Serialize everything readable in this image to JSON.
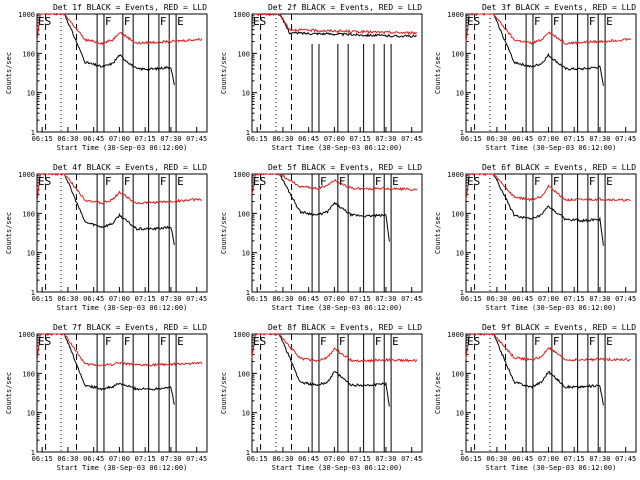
{
  "chart_data": [
    {
      "type": "line",
      "title": "Det 1f BLACK = Events, RED = LLD",
      "xlabel": "Start Time (30-Sep-03 06:12:00)",
      "ylabel": "Counts/sec",
      "yscale": "log",
      "ylim": [
        1,
        1000
      ],
      "x_ticks": [
        "06:15",
        "06:30",
        "06:45",
        "07:00",
        "07:15",
        "07:30",
        "07:45"
      ],
      "y_ticks": [
        "1",
        "10",
        "100",
        "1000"
      ],
      "markers": [
        {
          "label": "ES",
          "x": "06:12"
        },
        {
          "label": "F",
          "x": "06:51"
        },
        {
          "label": "F",
          "x": "07:02"
        },
        {
          "label": "F",
          "x": "07:23"
        },
        {
          "label": "E",
          "x": "07:33"
        }
      ],
      "series": [
        {
          "name": "BLACK",
          "color": "#000000",
          "x": [
            "06:28",
            "06:40",
            "06:50",
            "06:56",
            "07:00",
            "07:10",
            "07:20",
            "07:30",
            "07:32"
          ],
          "values": [
            1000,
            60,
            45,
            55,
            90,
            40,
            40,
            45,
            15
          ]
        },
        {
          "name": "RED",
          "color": "#e02020",
          "x": [
            "06:12",
            "06:14",
            "06:28",
            "06:40",
            "06:50",
            "06:56",
            "07:00",
            "07:10",
            "07:20",
            "07:30",
            "07:48"
          ],
          "values": [
            200,
            1000,
            1000,
            220,
            180,
            220,
            350,
            180,
            190,
            200,
            230
          ]
        }
      ]
    },
    {
      "type": "line",
      "title": "Det 2f BLACK = Events, RED = LLD",
      "xlabel": "Start Time (30-Sep-03 06:12:00)",
      "ylabel": "Counts/sec",
      "yscale": "log",
      "ylim": [
        1,
        1000
      ],
      "x_ticks": [
        "06:15",
        "06:30",
        "06:45",
        "07:00",
        "07:15",
        "07:30",
        "07:45"
      ],
      "y_ticks": [
        "1",
        "10",
        "100",
        "1000"
      ],
      "markers": [
        {
          "label": "ES",
          "x": "06:12"
        }
      ],
      "series": [
        {
          "name": "BLACK",
          "color": "#000000",
          "x": [
            "06:14",
            "06:28",
            "06:34",
            "06:50",
            "07:10",
            "07:30",
            "07:48"
          ],
          "values": [
            1000,
            1000,
            330,
            320,
            300,
            280,
            270
          ]
        },
        {
          "name": "RED",
          "color": "#e02020",
          "x": [
            "06:14",
            "06:28",
            "06:34",
            "06:50",
            "07:10",
            "07:30",
            "07:48"
          ],
          "values": [
            1000,
            1000,
            400,
            380,
            360,
            340,
            330
          ]
        }
      ]
    },
    {
      "type": "line",
      "title": "Det 3f BLACK = Events, RED = LLD",
      "xlabel": "Start Time (30-Sep-03 06:12:00)",
      "ylabel": "Counts/sec",
      "yscale": "log",
      "ylim": [
        1,
        1000
      ],
      "x_ticks": [
        "06:15",
        "06:30",
        "06:45",
        "07:00",
        "07:15",
        "07:30",
        "07:45"
      ],
      "y_ticks": [
        "1",
        "10",
        "100",
        "1000"
      ],
      "markers": [
        {
          "label": "ES",
          "x": "06:12"
        },
        {
          "label": "F",
          "x": "06:51"
        },
        {
          "label": "F",
          "x": "07:02"
        },
        {
          "label": "F",
          "x": "07:23"
        },
        {
          "label": "E",
          "x": "07:33"
        }
      ],
      "series": [
        {
          "name": "BLACK",
          "color": "#000000",
          "x": [
            "06:28",
            "06:40",
            "06:50",
            "06:56",
            "07:00",
            "07:10",
            "07:20",
            "07:30",
            "07:32"
          ],
          "values": [
            1000,
            60,
            45,
            55,
            90,
            40,
            40,
            45,
            15
          ]
        },
        {
          "name": "RED",
          "color": "#e02020",
          "x": [
            "06:12",
            "06:14",
            "06:28",
            "06:40",
            "06:50",
            "06:56",
            "07:00",
            "07:10",
            "07:20",
            "07:30",
            "07:48"
          ],
          "values": [
            200,
            1000,
            1000,
            220,
            180,
            220,
            350,
            180,
            190,
            200,
            230
          ]
        }
      ]
    },
    {
      "type": "line",
      "title": "Det 4f BLACK = Events, RED = LLD",
      "xlabel": "Start Time (30-Sep-03 06:12:00)",
      "ylabel": "Counts/sec",
      "yscale": "log",
      "ylim": [
        1,
        1000
      ],
      "x_ticks": [
        "06:15",
        "06:30",
        "06:45",
        "07:00",
        "07:15",
        "07:30",
        "07:45"
      ],
      "y_ticks": [
        "1",
        "10",
        "100",
        "1000"
      ],
      "markers": [
        {
          "label": "ES",
          "x": "06:12"
        },
        {
          "label": "F",
          "x": "06:51"
        },
        {
          "label": "F",
          "x": "07:02"
        },
        {
          "label": "F",
          "x": "07:23"
        },
        {
          "label": "E",
          "x": "07:33"
        }
      ],
      "series": [
        {
          "name": "BLACK",
          "color": "#000000",
          "x": [
            "06:28",
            "06:40",
            "06:50",
            "06:56",
            "07:00",
            "07:10",
            "07:20",
            "07:30",
            "07:32"
          ],
          "values": [
            1000,
            60,
            45,
            55,
            90,
            40,
            40,
            45,
            15
          ]
        },
        {
          "name": "RED",
          "color": "#e02020",
          "x": [
            "06:12",
            "06:14",
            "06:28",
            "06:40",
            "06:50",
            "06:56",
            "07:00",
            "07:10",
            "07:20",
            "07:30",
            "07:48"
          ],
          "values": [
            200,
            1000,
            1000,
            220,
            180,
            220,
            350,
            180,
            190,
            200,
            230
          ]
        }
      ]
    },
    {
      "type": "line",
      "title": "Det 5f BLACK = Events, RED = LLD",
      "xlabel": "Start Time (30-Sep-03 06:12:00)",
      "ylabel": "Counts/sec",
      "yscale": "log",
      "ylim": [
        1,
        1000
      ],
      "x_ticks": [
        "06:15",
        "06:30",
        "06:45",
        "07:00",
        "07:15",
        "07:30",
        "07:45"
      ],
      "y_ticks": [
        "1",
        "10",
        "100",
        "1000"
      ],
      "markers": [
        {
          "label": "ES",
          "x": "06:12"
        },
        {
          "label": "F",
          "x": "06:51"
        },
        {
          "label": "F",
          "x": "07:02"
        },
        {
          "label": "F",
          "x": "07:23"
        },
        {
          "label": "E",
          "x": "07:33"
        }
      ],
      "series": [
        {
          "name": "BLACK",
          "color": "#000000",
          "x": [
            "06:28",
            "06:40",
            "06:50",
            "06:56",
            "07:00",
            "07:10",
            "07:20",
            "07:30",
            "07:32"
          ],
          "values": [
            1000,
            110,
            90,
            110,
            180,
            90,
            85,
            90,
            20
          ]
        },
        {
          "name": "RED",
          "color": "#e02020",
          "x": [
            "06:12",
            "06:14",
            "06:28",
            "06:40",
            "06:50",
            "06:56",
            "07:00",
            "07:10",
            "07:20",
            "07:30",
            "07:48"
          ],
          "values": [
            300,
            1000,
            1000,
            480,
            430,
            520,
            700,
            430,
            420,
            430,
            400
          ]
        }
      ]
    },
    {
      "type": "line",
      "title": "Det 6f BLACK = Events, RED = LLD",
      "xlabel": "Start Time (30-Sep-03 06:12:00)",
      "ylabel": "Counts/sec",
      "yscale": "log",
      "ylim": [
        1,
        1000
      ],
      "x_ticks": [
        "06:15",
        "06:30",
        "06:45",
        "07:00",
        "07:15",
        "07:30",
        "07:45"
      ],
      "y_ticks": [
        "1",
        "10",
        "100",
        "1000"
      ],
      "markers": [
        {
          "label": "ES",
          "x": "06:12"
        },
        {
          "label": "F",
          "x": "06:51"
        },
        {
          "label": "F",
          "x": "07:02"
        },
        {
          "label": "F",
          "x": "07:23"
        },
        {
          "label": "E",
          "x": "07:33"
        }
      ],
      "series": [
        {
          "name": "BLACK",
          "color": "#000000",
          "x": [
            "06:28",
            "06:40",
            "06:50",
            "06:56",
            "07:00",
            "07:10",
            "07:20",
            "07:30",
            "07:32"
          ],
          "values": [
            1000,
            90,
            70,
            90,
            150,
            70,
            65,
            70,
            15
          ]
        },
        {
          "name": "RED",
          "color": "#e02020",
          "x": [
            "06:12",
            "06:14",
            "06:28",
            "06:40",
            "06:50",
            "06:56",
            "07:00",
            "07:10",
            "07:20",
            "07:30",
            "07:48"
          ],
          "values": [
            220,
            1000,
            1000,
            260,
            220,
            270,
            500,
            220,
            220,
            230,
            210
          ]
        }
      ]
    },
    {
      "type": "line",
      "title": "Det 7f BLACK = Events, RED = LLD",
      "xlabel": "Start Time (30-Sep-03 06:12:00)",
      "ylabel": "Counts/sec",
      "yscale": "log",
      "ylim": [
        1,
        1000
      ],
      "x_ticks": [
        "06:15",
        "06:30",
        "06:45",
        "07:00",
        "07:15",
        "07:30",
        "07:45"
      ],
      "y_ticks": [
        "1",
        "10",
        "100",
        "1000"
      ],
      "markers": [
        {
          "label": "ES",
          "x": "06:12"
        },
        {
          "label": "F",
          "x": "06:51"
        },
        {
          "label": "F",
          "x": "07:02"
        },
        {
          "label": "F",
          "x": "07:23"
        },
        {
          "label": "E",
          "x": "07:33"
        }
      ],
      "series": [
        {
          "name": "BLACK",
          "color": "#000000",
          "x": [
            "06:28",
            "06:40",
            "06:50",
            "06:56",
            "07:00",
            "07:10",
            "07:20",
            "07:30",
            "07:32"
          ],
          "values": [
            1000,
            50,
            40,
            45,
            55,
            40,
            40,
            45,
            15
          ]
        },
        {
          "name": "RED",
          "color": "#e02020",
          "x": [
            "06:12",
            "06:14",
            "06:28",
            "06:40",
            "06:50",
            "06:56",
            "07:00",
            "07:10",
            "07:20",
            "07:30",
            "07:48"
          ],
          "values": [
            200,
            1000,
            1000,
            170,
            160,
            170,
            190,
            160,
            165,
            170,
            180
          ]
        }
      ]
    },
    {
      "type": "line",
      "title": "Det 8f BLACK = Events, RED = LLD",
      "xlabel": "Start Time (30-Sep-03 06:12:00)",
      "ylabel": "Counts/sec",
      "yscale": "log",
      "ylim": [
        1,
        1000
      ],
      "x_ticks": [
        "06:15",
        "06:30",
        "06:45",
        "07:00",
        "07:15",
        "07:30",
        "07:45"
      ],
      "y_ticks": [
        "1",
        "10",
        "100",
        "1000"
      ],
      "markers": [
        {
          "label": "ES",
          "x": "06:12"
        },
        {
          "label": "F",
          "x": "06:51"
        },
        {
          "label": "F",
          "x": "07:02"
        },
        {
          "label": "F",
          "x": "07:23"
        },
        {
          "label": "E",
          "x": "07:33"
        }
      ],
      "series": [
        {
          "name": "BLACK",
          "color": "#000000",
          "x": [
            "06:28",
            "06:40",
            "06:50",
            "06:56",
            "07:00",
            "07:10",
            "07:20",
            "07:30",
            "07:32"
          ],
          "values": [
            1000,
            60,
            50,
            60,
            110,
            50,
            50,
            55,
            15
          ]
        },
        {
          "name": "RED",
          "color": "#e02020",
          "x": [
            "06:12",
            "06:14",
            "06:28",
            "06:40",
            "06:50",
            "06:56",
            "07:00",
            "07:10",
            "07:20",
            "07:30",
            "07:48"
          ],
          "values": [
            250,
            1000,
            1000,
            240,
            210,
            250,
            420,
            210,
            210,
            220,
            210
          ]
        }
      ]
    },
    {
      "type": "line",
      "title": "Det 9f BLACK = Events, RED = LLD",
      "xlabel": "Start Time (30-Sep-03 06:12:00)",
      "ylabel": "Counts/sec",
      "yscale": "log",
      "ylim": [
        1,
        1000
      ],
      "x_ticks": [
        "06:15",
        "06:30",
        "06:45",
        "07:00",
        "07:15",
        "07:30",
        "07:45"
      ],
      "y_ticks": [
        "1",
        "10",
        "100",
        "1000"
      ],
      "markers": [
        {
          "label": "ES",
          "x": "06:12"
        },
        {
          "label": "F",
          "x": "06:51"
        },
        {
          "label": "F",
          "x": "07:02"
        },
        {
          "label": "F",
          "x": "07:23"
        },
        {
          "label": "E",
          "x": "07:33"
        }
      ],
      "series": [
        {
          "name": "BLACK",
          "color": "#000000",
          "x": [
            "06:28",
            "06:40",
            "06:50",
            "06:56",
            "07:00",
            "07:10",
            "07:20",
            "07:30",
            "07:32"
          ],
          "values": [
            1000,
            60,
            45,
            60,
            110,
            45,
            45,
            50,
            15
          ]
        },
        {
          "name": "RED",
          "color": "#e02020",
          "x": [
            "06:12",
            "06:14",
            "06:28",
            "06:40",
            "06:50",
            "06:56",
            "07:00",
            "07:10",
            "07:20",
            "07:30",
            "07:48"
          ],
          "values": [
            230,
            1000,
            1000,
            250,
            220,
            260,
            450,
            220,
            220,
            230,
            220
          ]
        }
      ]
    }
  ]
}
